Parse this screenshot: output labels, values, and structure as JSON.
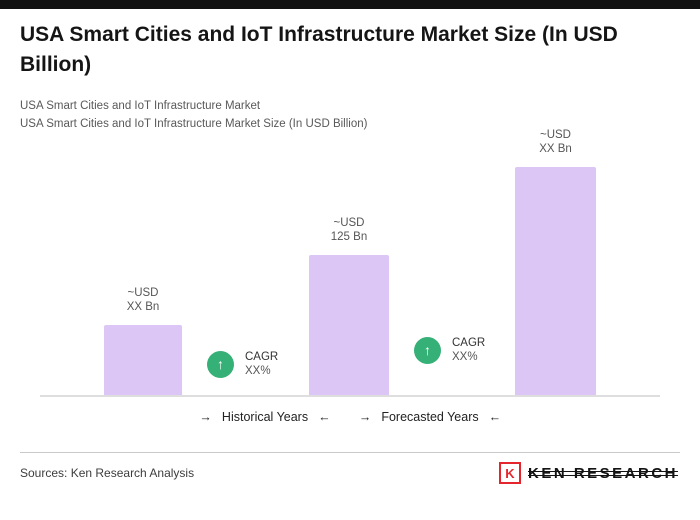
{
  "header": {
    "title": "USA Smart Cities and IoT Infrastructure Market Size (In USD Billion)",
    "subtitle1": "USA Smart Cities and IoT Infrastructure Market",
    "subtitle2": "USA Smart Cities and IoT Infrastructure Market Size (In USD Billion)"
  },
  "chart_data": {
    "type": "bar",
    "title": "USA Smart Cities and IoT Infrastructure Market Size (In USD Billion)",
    "unit": "USD Billion",
    "bar_color": "#dcc6f5",
    "badge_color": "#35b077",
    "grid": "off",
    "legend": "none",
    "ylim": [
      0,
      230
    ],
    "bars": [
      {
        "label_line1": "~USD",
        "label_line2": "XX Bn",
        "value": 63
      },
      {
        "label_line1": "~USD",
        "label_line2": "125 Bn",
        "value": 125
      },
      {
        "label_line1": "~USD",
        "label_line2": "XX Bn",
        "value": 204
      }
    ],
    "cagr_badges": [
      {
        "arrow": "↑",
        "line1": "CAGR",
        "line2": "XX%"
      },
      {
        "arrow": "↑",
        "line1": "CAGR",
        "line2": "XX%"
      }
    ],
    "axis_ranges": [
      {
        "prefix": "→",
        "label": "Historical Years",
        "suffix": "←"
      },
      {
        "prefix": "→",
        "label": "Forecasted Years",
        "suffix": "←"
      }
    ]
  },
  "footer": {
    "sources": "Sources: Ken Research Analysis",
    "logo": {
      "icon_letter": "K",
      "text": "KEN RESEARCH",
      "accent_color": "#e4252c"
    }
  }
}
